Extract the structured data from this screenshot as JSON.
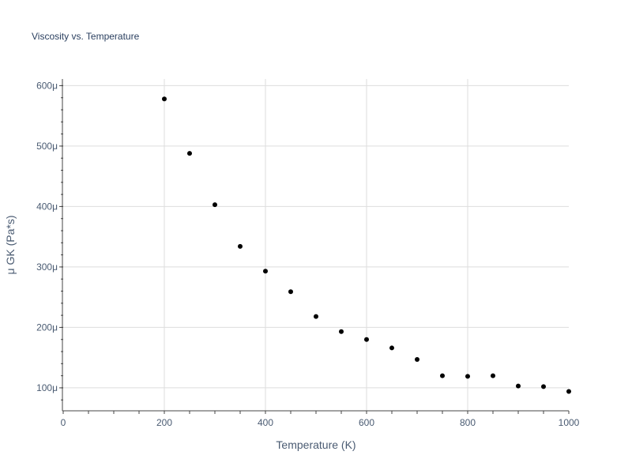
{
  "chart_data": {
    "type": "scatter",
    "title": "Viscosity vs. Temperature",
    "xlabel": "Temperature (K)",
    "ylabel": "μ GK (Pa*s)",
    "xlim": [
      0,
      1000
    ],
    "ylim": [
      6.2e-05,
      0.000611
    ],
    "x_ticks": [
      0,
      200,
      400,
      600,
      800,
      1000
    ],
    "x_tick_labels": [
      "0",
      "200",
      "400",
      "600",
      "800",
      "1000"
    ],
    "y_ticks": [
      0.0001,
      0.0002,
      0.0003,
      0.0004,
      0.0005,
      0.0006
    ],
    "y_tick_labels": [
      "100μ",
      "200μ",
      "300μ",
      "400μ",
      "500μ",
      "600μ"
    ],
    "grid": true,
    "marker_color": "#000000",
    "grid_color": "#dddddd",
    "series": [
      {
        "x": [
          200,
          250,
          300,
          350,
          400,
          450,
          500,
          550,
          600,
          650,
          700,
          750,
          800,
          850,
          900,
          950,
          1000
        ],
        "y": [
          0.000578,
          0.000488,
          0.000403,
          0.000334,
          0.000293,
          0.000259,
          0.000218,
          0.000193,
          0.00018,
          0.000166,
          0.000147,
          0.00012,
          0.000119,
          0.00012,
          0.000103,
          0.000102,
          9.4e-05
        ]
      }
    ]
  }
}
